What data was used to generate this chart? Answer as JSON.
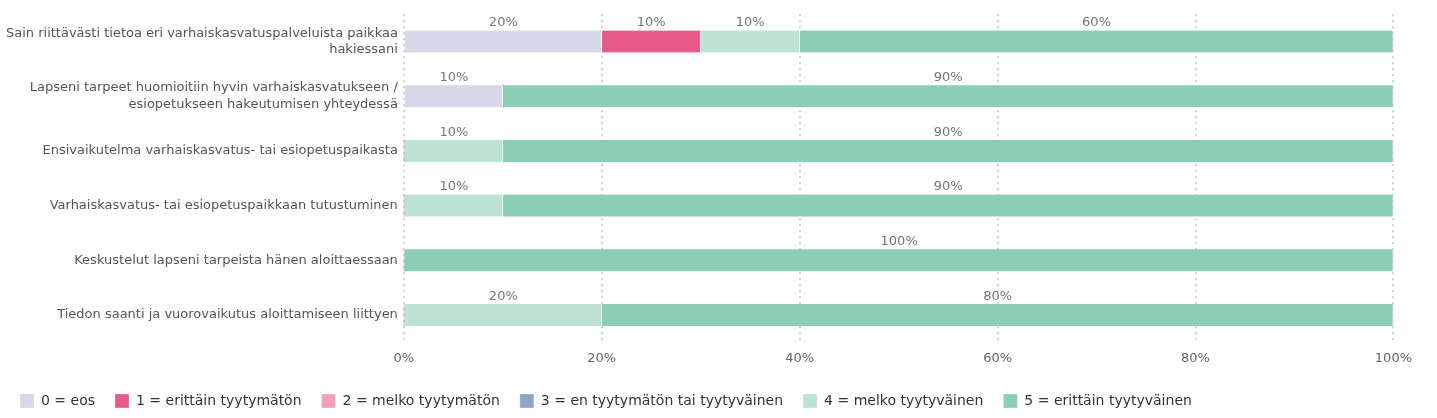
{
  "chart_data": {
    "type": "bar",
    "orientation": "horizontal",
    "stacked": true,
    "categories": [
      "Sain riittävästi tietoa eri varhaiskasvatuspalveluista paikkaa hakiessani",
      "Lapseni tarpeet huomioitiin hyvin varhaiskasvatukseen / esiopetukseen hakeutumisen yhteydessä",
      "Ensivaikutelma varhaiskasvatus- tai esiopetuspaikasta",
      "Varhaiskasvatus- tai esiopetuspaikkaan tutustuminen",
      "Keskustelut lapseni tarpeista hänen aloittaessaan",
      "Tiedon saanti ja vuorovaikutus aloittamiseen liittyen"
    ],
    "series": [
      {
        "name": "0 = eos",
        "color": "#d5dae8",
        "values": [
          20,
          10,
          0,
          0,
          0,
          0
        ],
        "value_labels": [
          "20%",
          "10%",
          null,
          null,
          null,
          null
        ]
      },
      {
        "name": "1 = erittäin tyytymätön",
        "color": "#e65b8a",
        "values": [
          10,
          0,
          0,
          0,
          0,
          0
        ],
        "value_labels": [
          "10%",
          null,
          null,
          null,
          null,
          null
        ]
      },
      {
        "name": "2 = melko tyytymätön",
        "color": "#f2a0bd",
        "values": [
          0,
          0,
          0,
          0,
          0,
          0
        ],
        "value_labels": [
          null,
          null,
          null,
          null,
          null,
          null
        ]
      },
      {
        "name": "3 = en tyytymätön tai tyytyväinen",
        "color": "#96a3c6",
        "values": [
          0,
          0,
          0,
          0,
          0,
          0
        ],
        "value_labels": [
          null,
          null,
          null,
          null,
          null,
          null
        ]
      },
      {
        "name": "4 = melko tyytyväinen",
        "color": "#bde3d4",
        "values": [
          10,
          0,
          10,
          10,
          0,
          20
        ],
        "value_labels": [
          "10%",
          null,
          "10%",
          "10%",
          null,
          "20%"
        ]
      },
      {
        "name": "5 = erittäin tyytyväinen",
        "color": "#8dcfb5",
        "values": [
          60,
          90,
          90,
          90,
          100,
          80
        ],
        "value_labels": [
          "60%",
          "90%",
          "90%",
          "90%",
          "100%",
          "80%"
        ]
      }
    ],
    "xlim": [
      0,
      100
    ],
    "xticks": [
      {
        "value": 0,
        "label": "0%"
      },
      {
        "value": 20,
        "label": "20%"
      },
      {
        "value": 40,
        "label": "40%"
      },
      {
        "value": 60,
        "label": "60%"
      },
      {
        "value": 80,
        "label": "80%"
      },
      {
        "value": 100,
        "label": "100%"
      }
    ],
    "grid": "x",
    "legend": "bottom left"
  }
}
